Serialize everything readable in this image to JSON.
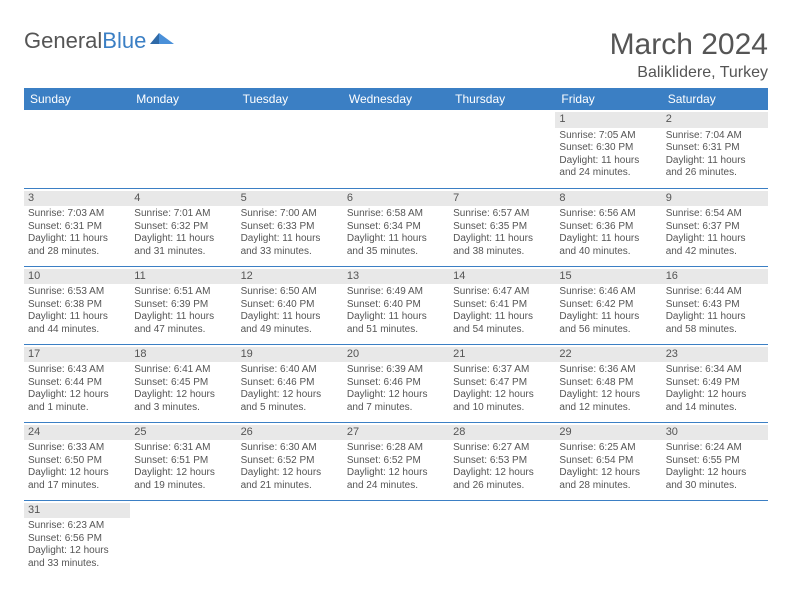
{
  "brand": {
    "part1": "General",
    "part2": "Blue"
  },
  "title": "March 2024",
  "location": "Baliklidere, Turkey",
  "colors": {
    "header_bg": "#3b7fc4",
    "header_text": "#ffffff",
    "border": "#3b7fc4",
    "daynum_bg": "#e8e8e8",
    "text": "#555555",
    "background": "#ffffff"
  },
  "typography": {
    "title_fontsize": 30,
    "location_fontsize": 16,
    "dayheader_fontsize": 12,
    "cell_fontsize": 10
  },
  "day_headers": [
    "Sunday",
    "Monday",
    "Tuesday",
    "Wednesday",
    "Thursday",
    "Friday",
    "Saturday"
  ],
  "weeks": [
    [
      null,
      null,
      null,
      null,
      null,
      {
        "n": "1",
        "sr": "Sunrise: 7:05 AM",
        "ss": "Sunset: 6:30 PM",
        "d1": "Daylight: 11 hours",
        "d2": "and 24 minutes."
      },
      {
        "n": "2",
        "sr": "Sunrise: 7:04 AM",
        "ss": "Sunset: 6:31 PM",
        "d1": "Daylight: 11 hours",
        "d2": "and 26 minutes."
      }
    ],
    [
      {
        "n": "3",
        "sr": "Sunrise: 7:03 AM",
        "ss": "Sunset: 6:31 PM",
        "d1": "Daylight: 11 hours",
        "d2": "and 28 minutes."
      },
      {
        "n": "4",
        "sr": "Sunrise: 7:01 AM",
        "ss": "Sunset: 6:32 PM",
        "d1": "Daylight: 11 hours",
        "d2": "and 31 minutes."
      },
      {
        "n": "5",
        "sr": "Sunrise: 7:00 AM",
        "ss": "Sunset: 6:33 PM",
        "d1": "Daylight: 11 hours",
        "d2": "and 33 minutes."
      },
      {
        "n": "6",
        "sr": "Sunrise: 6:58 AM",
        "ss": "Sunset: 6:34 PM",
        "d1": "Daylight: 11 hours",
        "d2": "and 35 minutes."
      },
      {
        "n": "7",
        "sr": "Sunrise: 6:57 AM",
        "ss": "Sunset: 6:35 PM",
        "d1": "Daylight: 11 hours",
        "d2": "and 38 minutes."
      },
      {
        "n": "8",
        "sr": "Sunrise: 6:56 AM",
        "ss": "Sunset: 6:36 PM",
        "d1": "Daylight: 11 hours",
        "d2": "and 40 minutes."
      },
      {
        "n": "9",
        "sr": "Sunrise: 6:54 AM",
        "ss": "Sunset: 6:37 PM",
        "d1": "Daylight: 11 hours",
        "d2": "and 42 minutes."
      }
    ],
    [
      {
        "n": "10",
        "sr": "Sunrise: 6:53 AM",
        "ss": "Sunset: 6:38 PM",
        "d1": "Daylight: 11 hours",
        "d2": "and 44 minutes."
      },
      {
        "n": "11",
        "sr": "Sunrise: 6:51 AM",
        "ss": "Sunset: 6:39 PM",
        "d1": "Daylight: 11 hours",
        "d2": "and 47 minutes."
      },
      {
        "n": "12",
        "sr": "Sunrise: 6:50 AM",
        "ss": "Sunset: 6:40 PM",
        "d1": "Daylight: 11 hours",
        "d2": "and 49 minutes."
      },
      {
        "n": "13",
        "sr": "Sunrise: 6:49 AM",
        "ss": "Sunset: 6:40 PM",
        "d1": "Daylight: 11 hours",
        "d2": "and 51 minutes."
      },
      {
        "n": "14",
        "sr": "Sunrise: 6:47 AM",
        "ss": "Sunset: 6:41 PM",
        "d1": "Daylight: 11 hours",
        "d2": "and 54 minutes."
      },
      {
        "n": "15",
        "sr": "Sunrise: 6:46 AM",
        "ss": "Sunset: 6:42 PM",
        "d1": "Daylight: 11 hours",
        "d2": "and 56 minutes."
      },
      {
        "n": "16",
        "sr": "Sunrise: 6:44 AM",
        "ss": "Sunset: 6:43 PM",
        "d1": "Daylight: 11 hours",
        "d2": "and 58 minutes."
      }
    ],
    [
      {
        "n": "17",
        "sr": "Sunrise: 6:43 AM",
        "ss": "Sunset: 6:44 PM",
        "d1": "Daylight: 12 hours",
        "d2": "and 1 minute."
      },
      {
        "n": "18",
        "sr": "Sunrise: 6:41 AM",
        "ss": "Sunset: 6:45 PM",
        "d1": "Daylight: 12 hours",
        "d2": "and 3 minutes."
      },
      {
        "n": "19",
        "sr": "Sunrise: 6:40 AM",
        "ss": "Sunset: 6:46 PM",
        "d1": "Daylight: 12 hours",
        "d2": "and 5 minutes."
      },
      {
        "n": "20",
        "sr": "Sunrise: 6:39 AM",
        "ss": "Sunset: 6:46 PM",
        "d1": "Daylight: 12 hours",
        "d2": "and 7 minutes."
      },
      {
        "n": "21",
        "sr": "Sunrise: 6:37 AM",
        "ss": "Sunset: 6:47 PM",
        "d1": "Daylight: 12 hours",
        "d2": "and 10 minutes."
      },
      {
        "n": "22",
        "sr": "Sunrise: 6:36 AM",
        "ss": "Sunset: 6:48 PM",
        "d1": "Daylight: 12 hours",
        "d2": "and 12 minutes."
      },
      {
        "n": "23",
        "sr": "Sunrise: 6:34 AM",
        "ss": "Sunset: 6:49 PM",
        "d1": "Daylight: 12 hours",
        "d2": "and 14 minutes."
      }
    ],
    [
      {
        "n": "24",
        "sr": "Sunrise: 6:33 AM",
        "ss": "Sunset: 6:50 PM",
        "d1": "Daylight: 12 hours",
        "d2": "and 17 minutes."
      },
      {
        "n": "25",
        "sr": "Sunrise: 6:31 AM",
        "ss": "Sunset: 6:51 PM",
        "d1": "Daylight: 12 hours",
        "d2": "and 19 minutes."
      },
      {
        "n": "26",
        "sr": "Sunrise: 6:30 AM",
        "ss": "Sunset: 6:52 PM",
        "d1": "Daylight: 12 hours",
        "d2": "and 21 minutes."
      },
      {
        "n": "27",
        "sr": "Sunrise: 6:28 AM",
        "ss": "Sunset: 6:52 PM",
        "d1": "Daylight: 12 hours",
        "d2": "and 24 minutes."
      },
      {
        "n": "28",
        "sr": "Sunrise: 6:27 AM",
        "ss": "Sunset: 6:53 PM",
        "d1": "Daylight: 12 hours",
        "d2": "and 26 minutes."
      },
      {
        "n": "29",
        "sr": "Sunrise: 6:25 AM",
        "ss": "Sunset: 6:54 PM",
        "d1": "Daylight: 12 hours",
        "d2": "and 28 minutes."
      },
      {
        "n": "30",
        "sr": "Sunrise: 6:24 AM",
        "ss": "Sunset: 6:55 PM",
        "d1": "Daylight: 12 hours",
        "d2": "and 30 minutes."
      }
    ],
    [
      {
        "n": "31",
        "sr": "Sunrise: 6:23 AM",
        "ss": "Sunset: 6:56 PM",
        "d1": "Daylight: 12 hours",
        "d2": "and 33 minutes."
      },
      null,
      null,
      null,
      null,
      null,
      null
    ]
  ]
}
